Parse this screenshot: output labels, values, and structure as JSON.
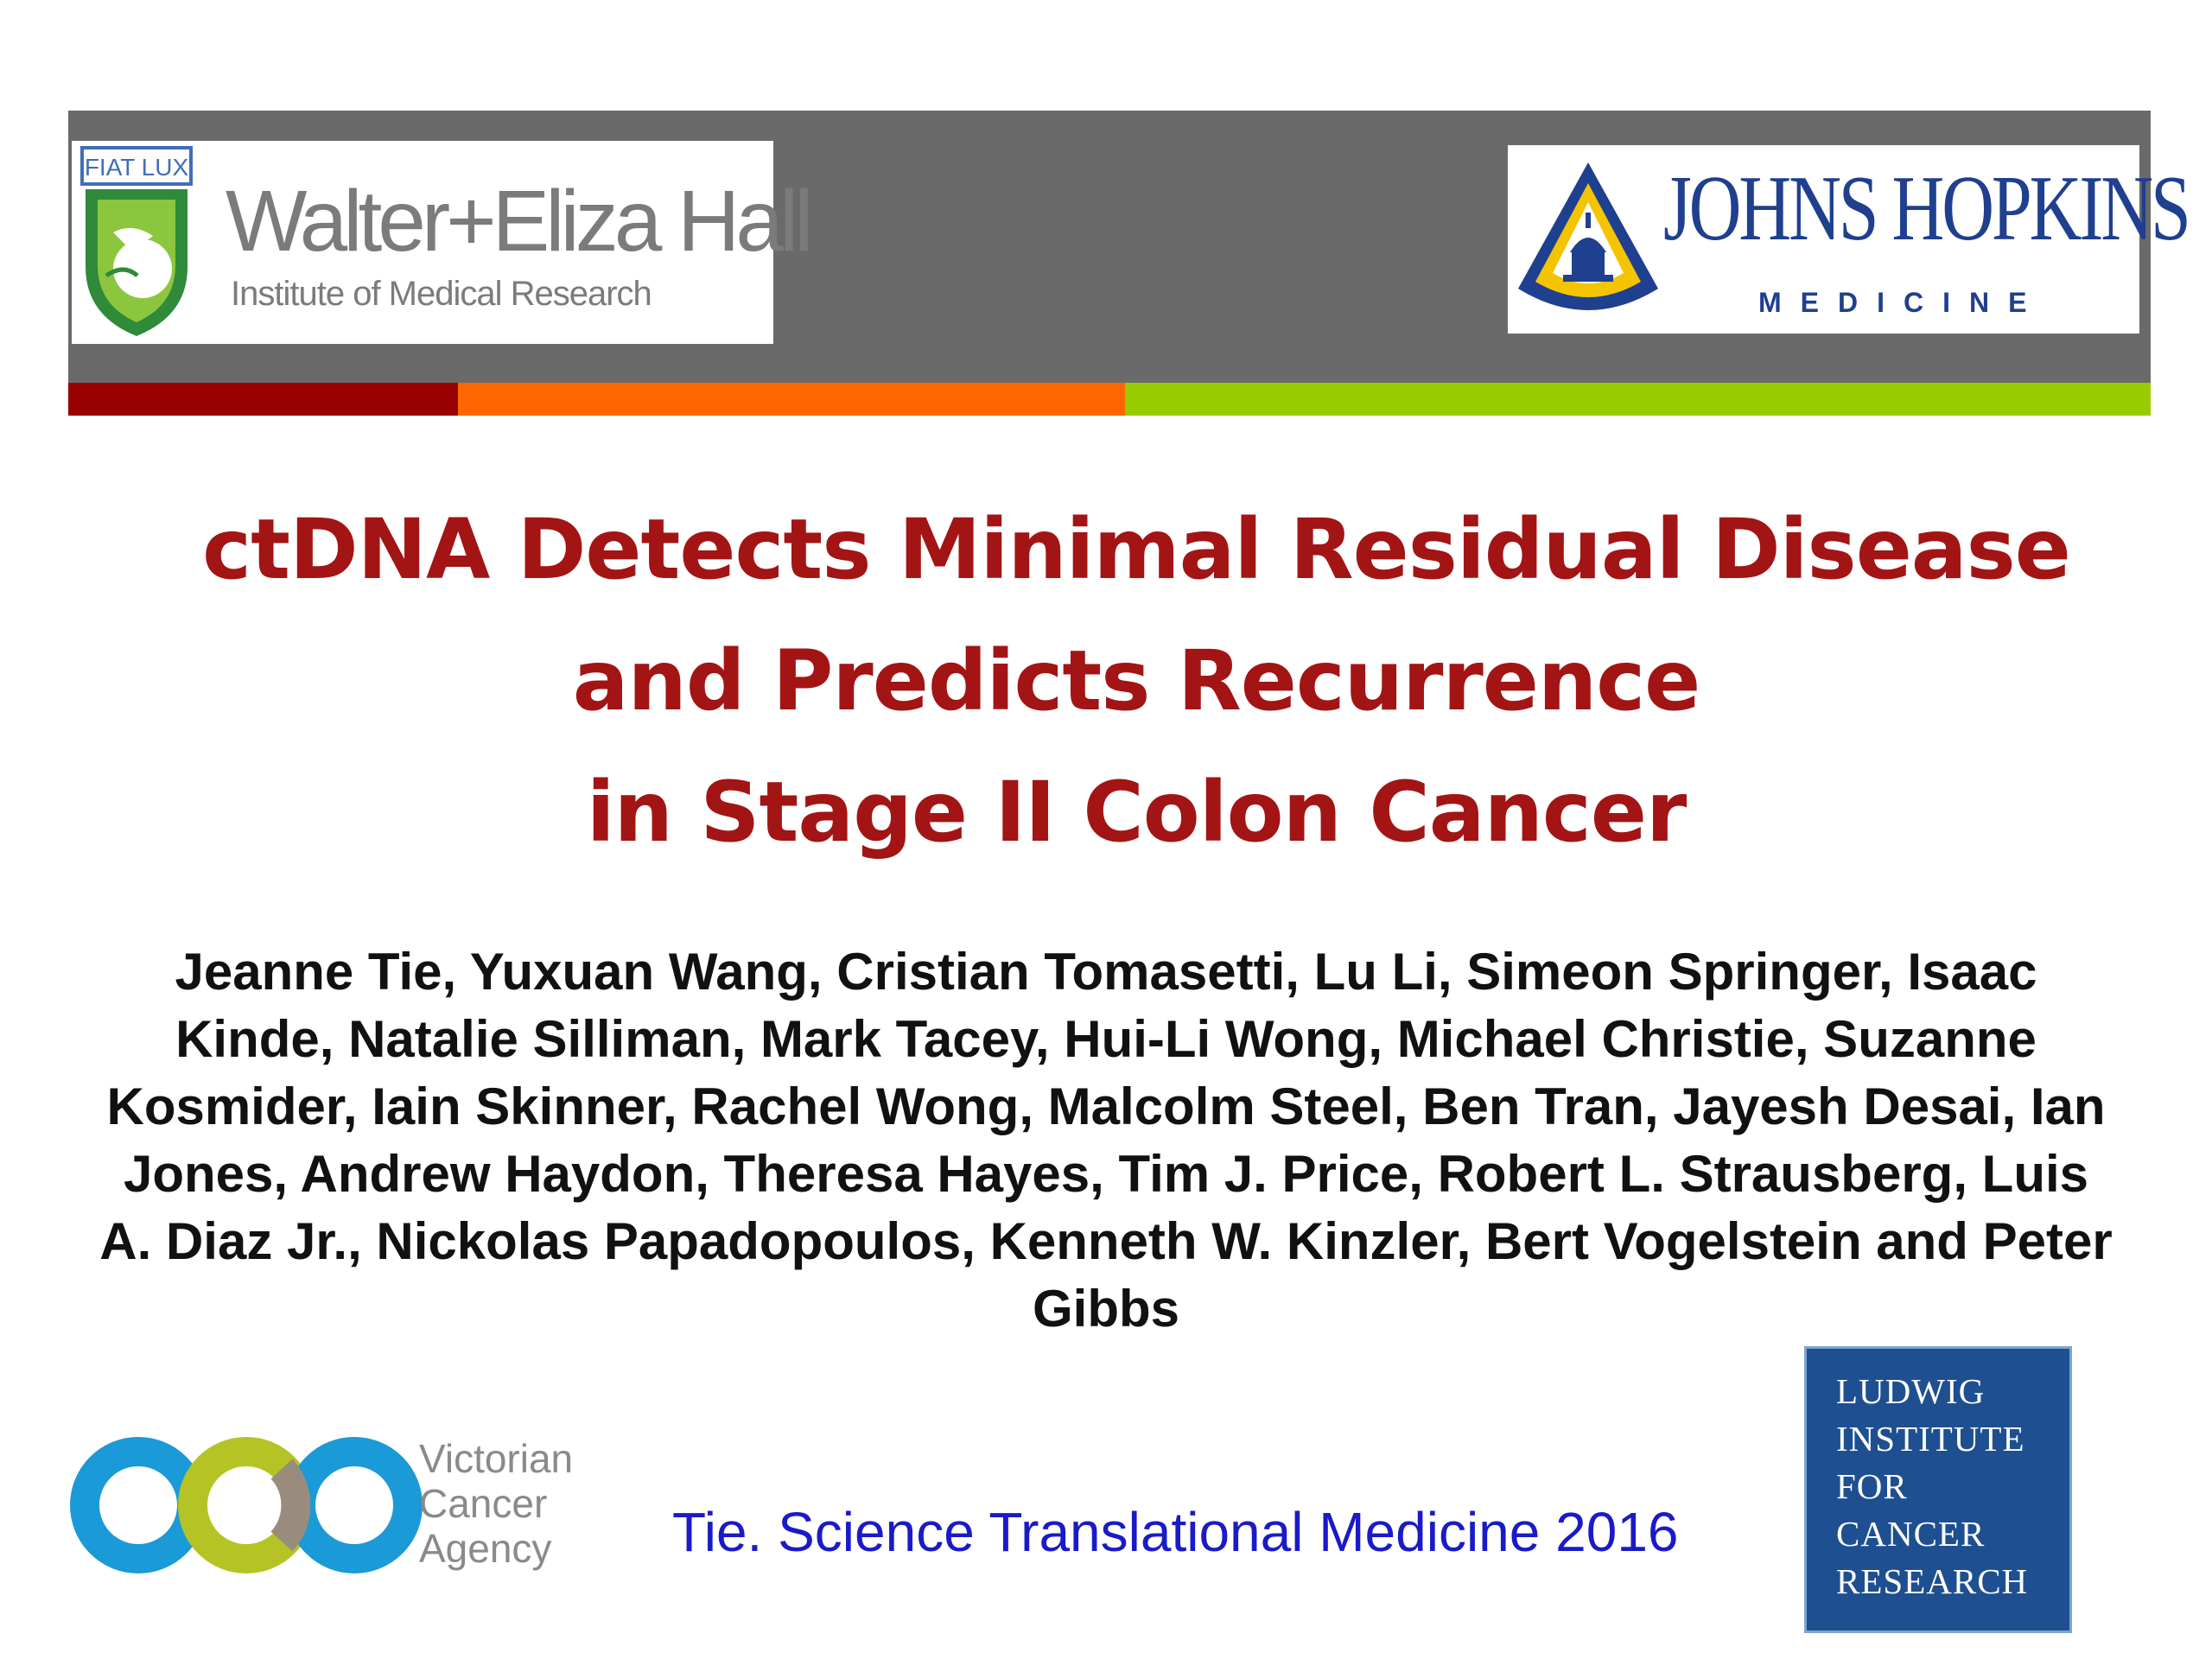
{
  "header": {
    "logo_left": {
      "motto": "FIAT LUX",
      "name": "Walter+Eliza Hall",
      "subtitle": "Institute of Medical Research"
    },
    "logo_right": {
      "name": "JOHNS HOPKINS",
      "subtitle": "MEDICINE",
      "brand_color": "#1f3f8f"
    },
    "accent_colors": [
      "#990000",
      "#ff6600",
      "#99cc00"
    ],
    "band_color": "#6a6a6a"
  },
  "title": {
    "line1": "ctDNA Detects Minimal Residual Disease",
    "line2": "and Predicts Recurrence",
    "line3": "in Stage II Colon Cancer",
    "color": "#a31414"
  },
  "authors": "Jeanne Tie, Yuxuan Wang, Cristian Tomasetti, Lu Li, Simeon Springer, Isaac Kinde, Natalie Silliman, Mark Tacey, Hui-Li Wong, Michael Christie, Suzanne Kosmider, Iain Skinner, Rachel Wong, Malcolm Steel, Ben Tran, Jayesh Desai, Ian Jones, Andrew Haydon, Theresa Hayes, Tim J. Price, Robert L. Strausberg, Luis A. Diaz Jr., Nickolas Papadopoulos, Kenneth W. Kinzler, Bert Vogelstein and Peter Gibbs",
  "footer": {
    "logo_left": {
      "line1": "Victorian",
      "line2": "Cancer",
      "line3": "Agency"
    },
    "citation": "Tie. Science Translational Medicine 2016",
    "citation_color": "#1a1ac8",
    "logo_right": {
      "line1": "LUDWIG",
      "line2": "INSTITUTE",
      "line3": "FOR",
      "line4": "CANCER",
      "line5": "RESEARCH",
      "color": "#1d4f91"
    }
  }
}
